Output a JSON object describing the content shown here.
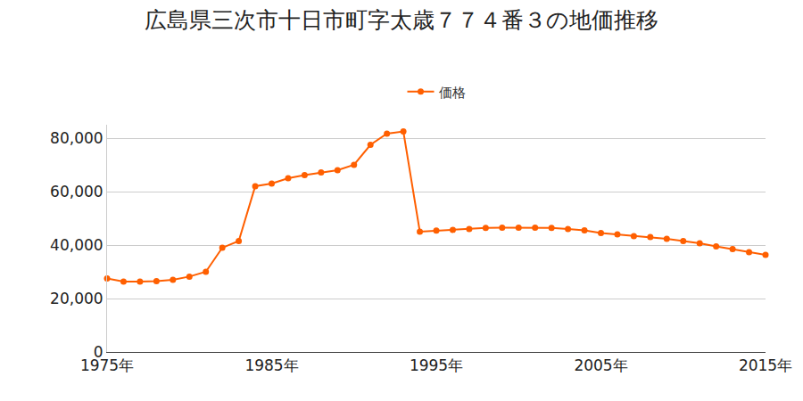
{
  "chart_data": {
    "type": "line",
    "title": "広島県三次市十日市町字太歳７７４番３の地価推移",
    "x": [
      1975,
      1976,
      1977,
      1978,
      1979,
      1980,
      1981,
      1982,
      1983,
      1984,
      1985,
      1986,
      1987,
      1988,
      1989,
      1990,
      1991,
      1992,
      1993,
      1994,
      1995,
      1996,
      1997,
      1998,
      1999,
      2000,
      2001,
      2002,
      2003,
      2004,
      2005,
      2006,
      2007,
      2008,
      2009,
      2010,
      2011,
      2012,
      2013,
      2014,
      2015
    ],
    "series": [
      {
        "name": "価格",
        "color": "#ff5f00",
        "marker": "circle",
        "values": [
          27500,
          26300,
          26300,
          26500,
          27000,
          28200,
          30000,
          39000,
          41500,
          62000,
          63000,
          65000,
          66200,
          67200,
          68000,
          70000,
          77500,
          81700,
          82500,
          45000,
          45400,
          45700,
          46000,
          46400,
          46500,
          46500,
          46500,
          46400,
          46000,
          45500,
          44500,
          44000,
          43300,
          43000,
          42300,
          41500,
          40700,
          39500,
          38500,
          37300,
          36300
        ]
      }
    ],
    "xlim": [
      1975,
      2015
    ],
    "xticks": [
      {
        "value": 1975,
        "label": "1975年"
      },
      {
        "value": 1985,
        "label": "1985年"
      },
      {
        "value": 1995,
        "label": "1995年"
      },
      {
        "value": 2005,
        "label": "2005年"
      },
      {
        "value": 2015,
        "label": "2015年"
      }
    ],
    "ylim": [
      0,
      85000
    ],
    "yticks": [
      0,
      {
        "value": 20000,
        "label": "20,000"
      },
      {
        "value": 40000,
        "label": "40,000"
      },
      {
        "value": 60000,
        "label": "60,000"
      },
      {
        "value": 80000,
        "label": "80,000"
      }
    ],
    "grid": true,
    "legend": "top"
  }
}
